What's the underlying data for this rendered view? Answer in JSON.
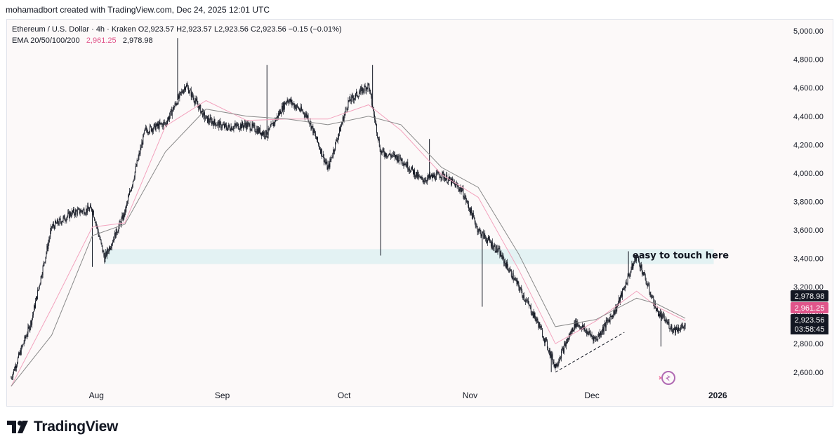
{
  "header": {
    "attribution": "mohamadbort created with TradingView.com, Dec 24, 2025 12:01 UTC"
  },
  "legend": {
    "symbol_line": "Ethereum / U.S. Dollar · 4h · Kraken   O2,923.57   H2,923.57   L2,923.56   C2,923.56   −0.15 (−0.01%)",
    "ema_label": "EMA 20/50/100/200",
    "ema_value_1": "2,961.25",
    "ema_value_2": "2,978.98"
  },
  "colors": {
    "candle": "#131722",
    "ema_pink": "#f3a3be",
    "ema_gray": "#8a8a8a",
    "zone": "#e3f2f3",
    "ema_badge_pink": "#e0558a",
    "price_badge": "#131722"
  },
  "brand": {
    "name": "TradingView"
  },
  "chart_data": {
    "type": "line",
    "timeframe": "4h",
    "xlabel": "",
    "ylabel": "",
    "x_ticks": [
      "Aug",
      "Sep",
      "Oct",
      "Nov",
      "Dec",
      "2026"
    ],
    "y_ticks": [
      "2,600.00",
      "2,800.00",
      "3,000.00",
      "3,200.00",
      "3,400.00",
      "3,600.00",
      "3,800.00",
      "4,000.00",
      "4,200.00",
      "4,400.00",
      "4,600.00",
      "4,800.00",
      "5,000.00"
    ],
    "ylim": [
      2530,
      5030
    ],
    "series": [
      {
        "name": "",
        "kind": "candlestick_close",
        "x": [
          "2025-07-11",
          "2025-07-16",
          "2025-07-21",
          "2025-07-26",
          "2025-07-31",
          "2025-08-03",
          "2025-08-08",
          "2025-08-13",
          "2025-08-18",
          "2025-08-23",
          "2025-08-28",
          "2025-09-02",
          "2025-09-07",
          "2025-09-12",
          "2025-09-17",
          "2025-09-22",
          "2025-09-27",
          "2025-10-02",
          "2025-10-07",
          "2025-10-10",
          "2025-10-15",
          "2025-10-20",
          "2025-10-25",
          "2025-10-30",
          "2025-11-03",
          "2025-11-08",
          "2025-11-13",
          "2025-11-18",
          "2025-11-22",
          "2025-11-27",
          "2025-12-02",
          "2025-12-07",
          "2025-12-12",
          "2025-12-17",
          "2025-12-21",
          "2025-12-24"
        ],
        "y": [
          2560,
          2960,
          3620,
          3720,
          3750,
          3400,
          3720,
          4300,
          4350,
          4620,
          4380,
          4320,
          4340,
          4270,
          4520,
          4400,
          4030,
          4500,
          4620,
          4150,
          4100,
          3950,
          3990,
          3880,
          3600,
          3450,
          3200,
          2930,
          2640,
          2950,
          2830,
          3050,
          3420,
          3030,
          2900,
          2923.56
        ]
      },
      {
        "name": "",
        "kind": "ema",
        "x": [
          "2025-07-11",
          "2025-07-21",
          "2025-07-31",
          "2025-08-08",
          "2025-08-18",
          "2025-08-28",
          "2025-09-07",
          "2025-09-17",
          "2025-09-27",
          "2025-10-07",
          "2025-10-15",
          "2025-10-25",
          "2025-11-03",
          "2025-11-13",
          "2025-11-22",
          "2025-12-02",
          "2025-12-12",
          "2025-12-17",
          "2025-12-24"
        ],
        "y": [
          2500,
          3050,
          3620,
          3650,
          4330,
          4510,
          4370,
          4380,
          4380,
          4480,
          4300,
          3990,
          3830,
          3320,
          2800,
          2960,
          3170,
          3060,
          2961.25
        ]
      },
      {
        "name": "",
        "kind": "ema",
        "x": [
          "2025-07-11",
          "2025-07-21",
          "2025-07-31",
          "2025-08-08",
          "2025-08-18",
          "2025-08-28",
          "2025-09-07",
          "2025-09-17",
          "2025-09-27",
          "2025-10-07",
          "2025-10-15",
          "2025-10-25",
          "2025-11-03",
          "2025-11-13",
          "2025-11-22",
          "2025-12-02",
          "2025-12-12",
          "2025-12-17",
          "2025-12-24"
        ],
        "y": [
          2500,
          2860,
          3560,
          3640,
          4150,
          4450,
          4400,
          4380,
          4340,
          4400,
          4340,
          4040,
          3900,
          3430,
          2920,
          2970,
          3120,
          3080,
          2978.98
        ]
      }
    ],
    "zone": {
      "from": 3360,
      "to": 3465,
      "x_start": "2025-08-03",
      "x_end": "2025-12-31"
    },
    "annotation": {
      "text": "easy to touch here",
      "y": 3420
    },
    "trendline": {
      "x": [
        "2025-11-22",
        "2025-12-09"
      ],
      "y": [
        2600,
        2880
      ],
      "style": "dashed"
    },
    "price_labels": [
      {
        "value": 2978.98,
        "text": "2,978.98",
        "style": "dark"
      },
      {
        "value": 2961.25,
        "text": "2,961.25",
        "style": "pink"
      },
      {
        "value": 2923.56,
        "text": "2,923.56",
        "style": "dark"
      }
    ],
    "countdown": "03:58:45",
    "grid": false,
    "legend_position": "top-left"
  }
}
